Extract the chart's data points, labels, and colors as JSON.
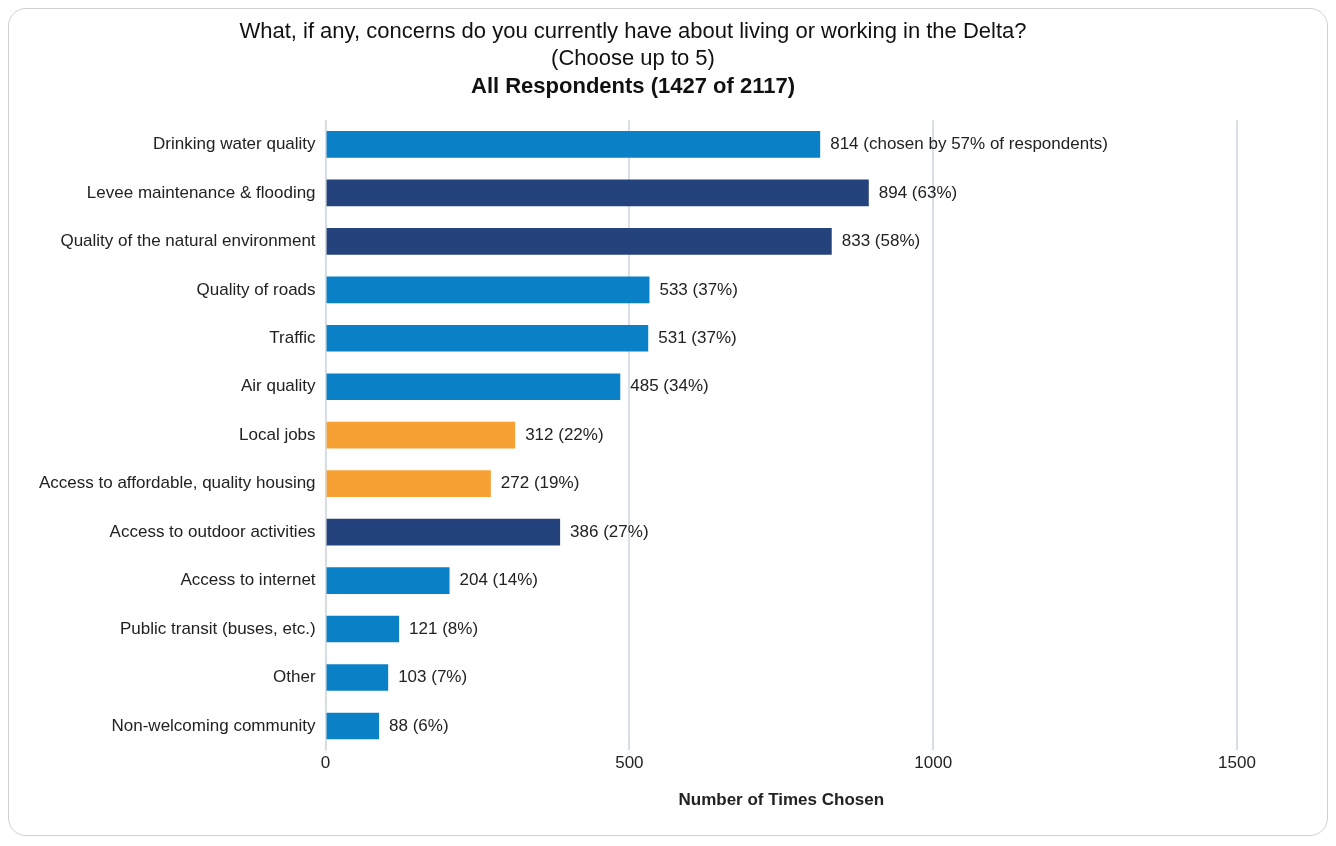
{
  "chart_data": {
    "type": "bar",
    "orientation": "horizontal",
    "title": "What, if any, concerns do you currently have about living or working in the Delta?\n(Choose up to 5)",
    "subtitle": "All Respondents (1427 of 2117)",
    "xlabel": "Number of Times Chosen",
    "categories": [
      "Drinking water quality",
      "Levee maintenance & flooding",
      "Quality of the natural environment",
      "Quality of roads",
      "Traffic",
      "Air quality",
      "Local jobs",
      "Access to affordable, quality housing",
      "Access to outdoor activities",
      "Access to internet",
      "Public transit (buses, etc.)",
      "Other",
      "Non-welcoming community"
    ],
    "values": [
      814,
      894,
      833,
      533,
      531,
      485,
      312,
      272,
      386,
      204,
      121,
      103,
      88
    ],
    "colors": [
      "#0a80c6",
      "#24427c",
      "#24427c",
      "#0a80c6",
      "#0a80c6",
      "#0a80c6",
      "#f7a034",
      "#f7a034",
      "#24427c",
      "#0a80c6",
      "#0a80c6",
      "#0a80c6",
      "#0a80c6"
    ],
    "value_labels": [
      "814 (chosen by 57% of respondents)",
      "894 (63%)",
      "833 (58%)",
      "533 (37%)",
      "531 (37%)",
      "485 (34%)",
      "312 (22%)",
      "272 (19%)",
      "386 (27%)",
      "204 (14%)",
      "121 (8%)",
      "103 (7%)",
      "88 (6%)"
    ],
    "xlim": [
      0,
      1500
    ],
    "xticks": [
      0,
      500,
      1000,
      1500
    ],
    "grid": "x",
    "legend": false
  }
}
